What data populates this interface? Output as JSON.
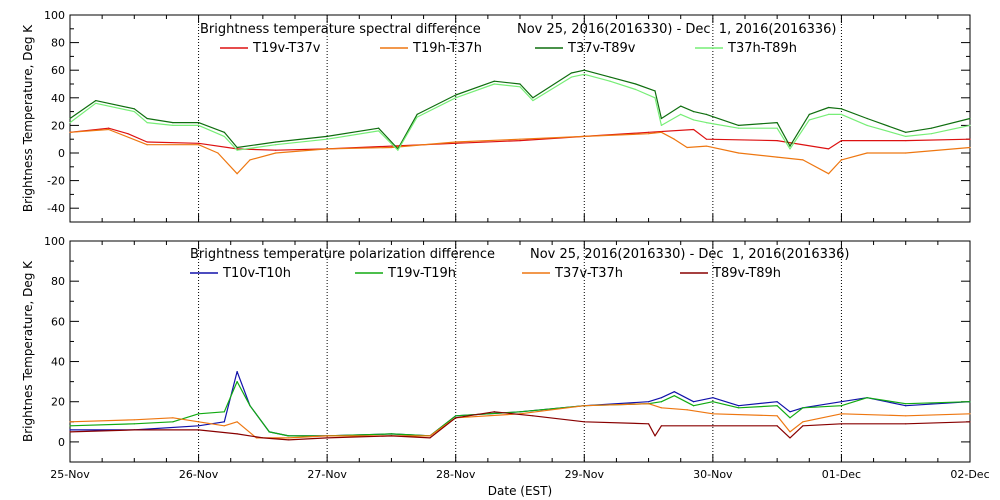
{
  "chart_data": [
    {
      "type": "line",
      "title": "Brightness temperature spectral difference",
      "date_range": "Nov 25, 2016(2016330) - Dec  1, 2016(2016336)",
      "ylabel": "Brightness Temperature, Deg K",
      "ylim": [
        -50,
        100
      ],
      "yticks": [
        -40,
        -20,
        0,
        20,
        40,
        60,
        80,
        100
      ],
      "xlim": [
        0,
        7
      ],
      "grid": "vertical dotted at day boundaries",
      "legend_placement": "top",
      "series": [
        {
          "name": "T19v-T37v",
          "color": "#dd1111",
          "x": [
            0,
            0.3,
            0.45,
            0.6,
            1.0,
            1.3,
            1.6,
            2.0,
            2.5,
            3.0,
            3.5,
            4.0,
            4.5,
            4.85,
            4.95,
            5.5,
            5.9,
            6.0,
            6.5,
            7.0
          ],
          "y": [
            15,
            18,
            14,
            8,
            7,
            3,
            2,
            3,
            5,
            7,
            9,
            12,
            15,
            17,
            10,
            9,
            3,
            9,
            9,
            10
          ]
        },
        {
          "name": "T19h-T37h",
          "color": "#ee7711",
          "x": [
            0,
            0.3,
            0.6,
            1.0,
            1.15,
            1.3,
            1.4,
            1.6,
            2.0,
            2.5,
            3.0,
            3.5,
            4.0,
            4.5,
            4.6,
            4.7,
            4.8,
            4.95,
            5.2,
            5.5,
            5.7,
            5.9,
            6.0,
            6.2,
            6.5,
            7.0
          ],
          "y": [
            15,
            17,
            6,
            6,
            0,
            -15,
            -5,
            0,
            3,
            4,
            8,
            10,
            12,
            14,
            15,
            10,
            4,
            5,
            0,
            -3,
            -5,
            -15,
            -5,
            0,
            0,
            4
          ]
        },
        {
          "name": "T37v-T89v",
          "color": "#0f6e0f",
          "x": [
            0,
            0.2,
            0.5,
            0.6,
            0.8,
            1.0,
            1.2,
            1.3,
            1.6,
            2.0,
            2.4,
            2.55,
            2.7,
            3.0,
            3.3,
            3.5,
            3.6,
            3.9,
            4.0,
            4.2,
            4.4,
            4.55,
            4.6,
            4.75,
            4.85,
            4.95,
            5.2,
            5.5,
            5.6,
            5.75,
            5.9,
            6.0,
            6.2,
            6.5,
            6.7,
            7.0
          ],
          "y": [
            25,
            38,
            32,
            25,
            22,
            22,
            15,
            4,
            8,
            12,
            18,
            3,
            28,
            42,
            52,
            50,
            40,
            58,
            60,
            55,
            50,
            45,
            25,
            34,
            30,
            28,
            20,
            22,
            5,
            28,
            33,
            32,
            25,
            15,
            18,
            25
          ]
        },
        {
          "name": "T37h-T89h",
          "color": "#77ee77",
          "x": [
            0,
            0.2,
            0.5,
            0.6,
            0.8,
            1.0,
            1.2,
            1.3,
            1.6,
            2.0,
            2.4,
            2.55,
            2.7,
            3.0,
            3.3,
            3.5,
            3.6,
            3.9,
            4.0,
            4.2,
            4.4,
            4.55,
            4.6,
            4.75,
            4.85,
            4.95,
            5.2,
            5.5,
            5.6,
            5.75,
            5.9,
            6.0,
            6.2,
            6.5,
            6.7,
            7.0
          ],
          "y": [
            22,
            36,
            30,
            22,
            20,
            20,
            12,
            2,
            6,
            10,
            16,
            2,
            26,
            40,
            50,
            48,
            38,
            55,
            57,
            52,
            46,
            40,
            20,
            28,
            24,
            22,
            18,
            18,
            3,
            24,
            28,
            28,
            20,
            12,
            14,
            20
          ]
        }
      ]
    },
    {
      "type": "line",
      "title": "Brightness temperature polarization difference",
      "date_range": "Nov 25, 2016(2016330) - Dec  1, 2016(2016336)",
      "ylabel": "Brightnes Temperature, Deg K",
      "xlabel": "Date (EST)",
      "ylim": [
        -10,
        100
      ],
      "yticks": [
        0,
        20,
        40,
        60,
        80,
        100
      ],
      "xlim": [
        0,
        7
      ],
      "xticks": [
        "25-Nov",
        "26-Nov",
        "27-Nov",
        "28-Nov",
        "29-Nov",
        "30-Nov",
        "01-Dec",
        "02-Dec"
      ],
      "grid": "vertical dotted at day boundaries",
      "legend_placement": "top",
      "series": [
        {
          "name": "T10v-T10h",
          "color": "#1111aa",
          "x": [
            0,
            0.5,
            1.0,
            1.2,
            1.3,
            1.4,
            1.55,
            1.7,
            2.0,
            2.5,
            2.8,
            3.0,
            3.5,
            4.0,
            4.5,
            4.6,
            4.7,
            4.85,
            5.0,
            5.2,
            5.5,
            5.6,
            5.7,
            6.0,
            6.2,
            6.5,
            7.0
          ],
          "y": [
            6,
            6,
            8,
            10,
            35,
            18,
            5,
            3,
            3,
            4,
            3,
            13,
            15,
            18,
            20,
            22,
            25,
            20,
            22,
            18,
            20,
            15,
            17,
            20,
            22,
            18,
            20
          ]
        },
        {
          "name": "T19v-T19h",
          "color": "#11aa11",
          "x": [
            0,
            0.5,
            0.8,
            1.0,
            1.2,
            1.3,
            1.4,
            1.55,
            1.7,
            2.0,
            2.5,
            2.8,
            3.0,
            3.5,
            4.0,
            4.5,
            4.6,
            4.7,
            4.85,
            5.0,
            5.2,
            5.5,
            5.6,
            5.7,
            6.0,
            6.2,
            6.5,
            7.0
          ],
          "y": [
            8,
            9,
            10,
            14,
            15,
            30,
            18,
            5,
            3,
            3,
            4,
            3,
            13,
            15,
            18,
            19,
            20,
            23,
            18,
            20,
            17,
            18,
            12,
            17,
            18,
            22,
            19,
            20
          ]
        },
        {
          "name": "T37v-T37h",
          "color": "#ee7711",
          "x": [
            0,
            0.5,
            0.8,
            1.0,
            1.2,
            1.3,
            1.45,
            1.7,
            2.0,
            2.5,
            2.8,
            3.0,
            3.5,
            4.0,
            4.5,
            4.6,
            4.8,
            5.0,
            5.5,
            5.6,
            5.7,
            6.0,
            6.5,
            7.0
          ],
          "y": [
            10,
            11,
            12,
            10,
            8,
            10,
            2,
            2,
            3,
            3,
            3,
            12,
            14,
            18,
            19,
            17,
            16,
            14,
            13,
            5,
            10,
            14,
            13,
            14
          ]
        },
        {
          "name": "T89v-T89h",
          "color": "#880000",
          "x": [
            0,
            0.5,
            1.0,
            1.3,
            1.5,
            1.7,
            2.0,
            2.5,
            2.8,
            3.0,
            3.3,
            3.6,
            4.0,
            4.5,
            4.55,
            4.6,
            5.0,
            5.5,
            5.6,
            5.7,
            6.0,
            6.5,
            7.0
          ],
          "y": [
            5,
            6,
            6,
            4,
            2,
            1,
            2,
            3,
            2,
            12,
            15,
            13,
            10,
            9,
            3,
            8,
            8,
            8,
            2,
            8,
            9,
            9,
            10
          ]
        }
      ]
    }
  ]
}
